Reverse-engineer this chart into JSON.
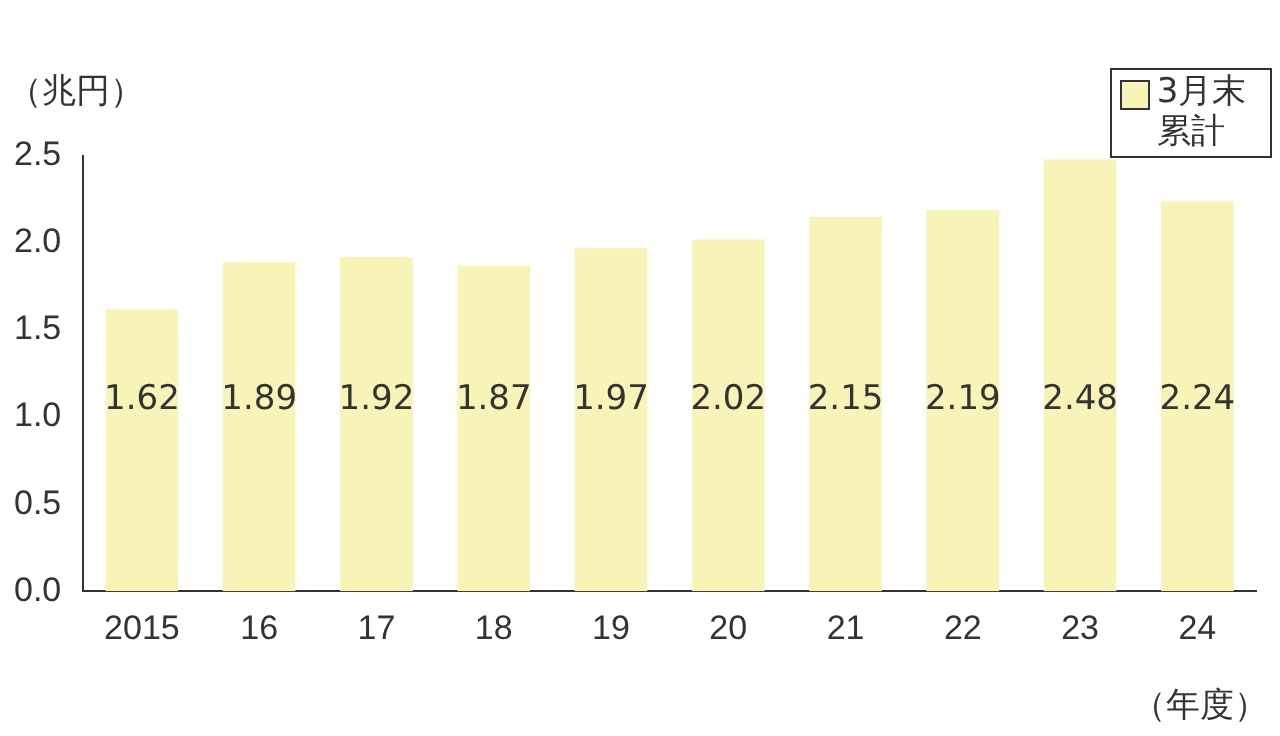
{
  "chart_data": {
    "type": "bar",
    "ylabel": "（兆円）",
    "xlabel": "（年度）",
    "categories": [
      "2015",
      "16",
      "17",
      "18",
      "19",
      "20",
      "21",
      "22",
      "23",
      "24"
    ],
    "series": [
      {
        "name": "3月末累計",
        "color": "#f8f4b8",
        "values": [
          1.62,
          1.89,
          1.92,
          1.87,
          1.97,
          2.02,
          2.15,
          2.19,
          2.48,
          2.24
        ]
      }
    ],
    "ylim": [
      0,
      2.5
    ],
    "yticks": [
      {
        "value": 0,
        "label": "0.0"
      },
      {
        "value": 0.5,
        "label": "0.5"
      },
      {
        "value": 1,
        "label": "1.0"
      },
      {
        "value": 1.5,
        "label": "1.5"
      },
      {
        "value": 2,
        "label": "2.0"
      },
      {
        "value": 2.5,
        "label": "2.5"
      }
    ],
    "grid": false,
    "legend": "top right",
    "data_labels": true
  }
}
